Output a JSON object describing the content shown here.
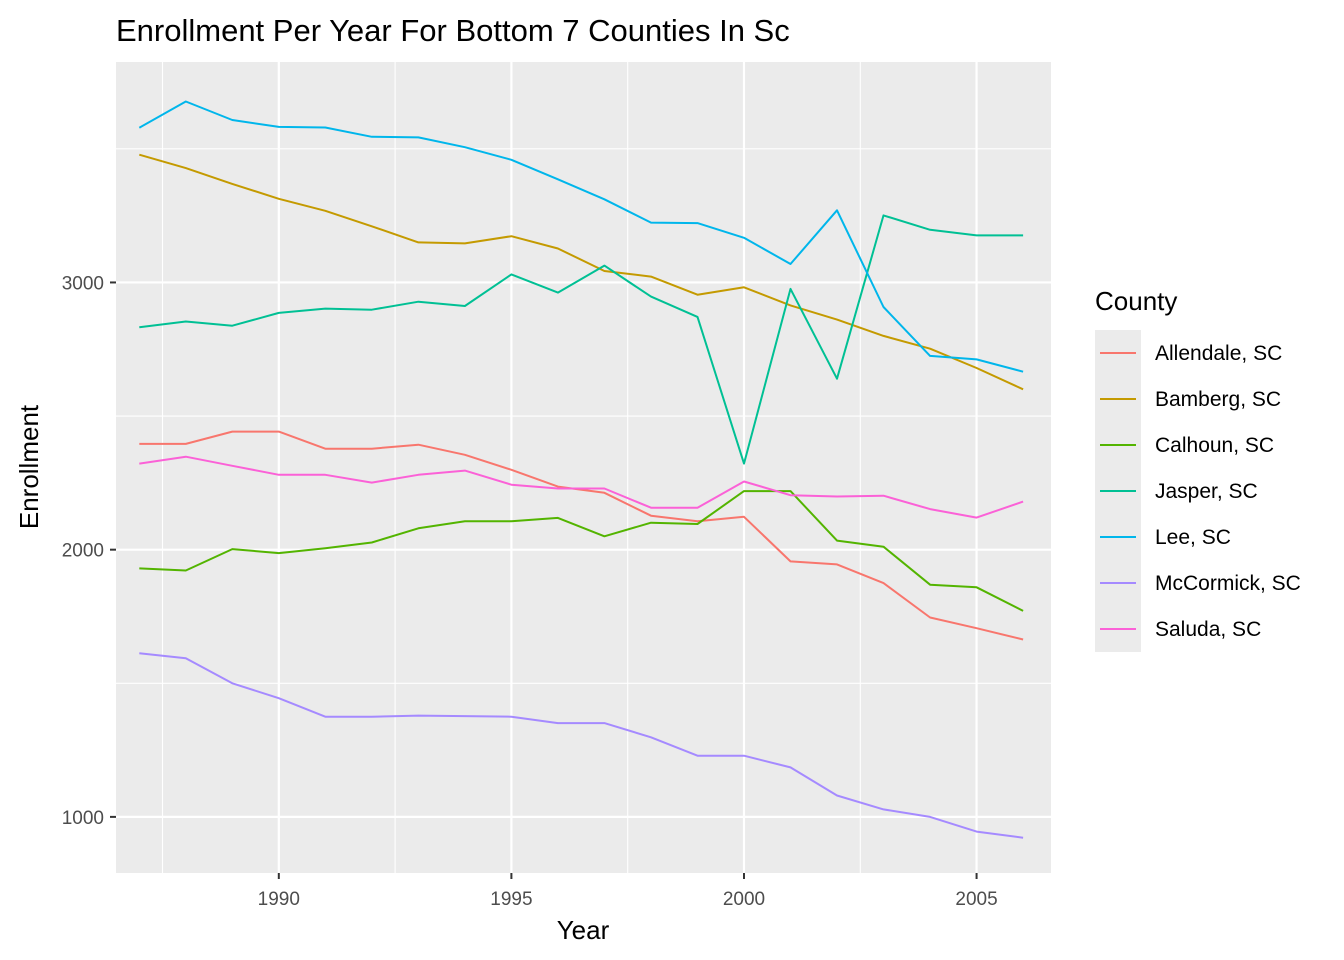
{
  "chart_data": {
    "type": "line",
    "title": "Enrollment Per Year For Bottom 7 Counties In Sc",
    "xlabel": "Year",
    "ylabel": "Enrollment",
    "xlim": [
      1986.5,
      2006.6
    ],
    "ylim": [
      790,
      3825
    ],
    "x_ticks": [
      1990,
      1995,
      2000,
      2005
    ],
    "x_tick_labels": [
      "1990",
      "1995",
      "2000",
      "2005"
    ],
    "y_ticks": [
      1000,
      2000,
      3000
    ],
    "y_tick_labels": [
      "1000",
      "2000",
      "3000"
    ],
    "grid": true,
    "legend": {
      "title": "County",
      "position": "right"
    },
    "x": [
      1987,
      1988,
      1989,
      1990,
      1991,
      1992,
      1993,
      1994,
      1995,
      1996,
      1997,
      1998,
      1999,
      2000,
      2001,
      2002,
      2003,
      2004,
      2005,
      2006
    ],
    "series": [
      {
        "name": "Allendale, SC",
        "color": "#F8766D",
        "values": [
          2396,
          2396,
          2442,
          2442,
          2378,
          2378,
          2393,
          2355,
          2299,
          2236,
          2213,
          2127,
          2106,
          2123,
          1956,
          1945,
          1875,
          1746,
          1706,
          1664
        ]
      },
      {
        "name": "Bamberg, SC",
        "color": "#C49A00",
        "values": [
          3478,
          3428,
          3369,
          3313,
          3268,
          3210,
          3150,
          3146,
          3173,
          3127,
          3043,
          3022,
          2954,
          2982,
          2914,
          2861,
          2800,
          2752,
          2680,
          2600
        ]
      },
      {
        "name": "Calhoun, SC",
        "color": "#53B400",
        "values": [
          1930,
          1922,
          2002,
          1987,
          2005,
          2027,
          2080,
          2106,
          2106,
          2119,
          2050,
          2101,
          2096,
          2219,
          2219,
          2034,
          2011,
          1869,
          1859,
          1771
        ]
      },
      {
        "name": "Jasper, SC",
        "color": "#00C094",
        "values": [
          2832,
          2854,
          2838,
          2886,
          2902,
          2898,
          2928,
          2912,
          3030,
          2962,
          3063,
          2947,
          2871,
          2322,
          2976,
          2640,
          3251,
          3197,
          3176,
          3176
        ]
      },
      {
        "name": "Lee, SC",
        "color": "#00B6EB",
        "values": [
          3579,
          3677,
          3608,
          3582,
          3580,
          3545,
          3543,
          3506,
          3459,
          3386,
          3311,
          3224,
          3222,
          3167,
          3069,
          3270,
          2908,
          2725,
          2712,
          2666
        ]
      },
      {
        "name": "McCormick, SC",
        "color": "#A58AFF",
        "values": [
          1612,
          1594,
          1500,
          1444,
          1375,
          1375,
          1379,
          1377,
          1375,
          1351,
          1351,
          1298,
          1229,
          1229,
          1185,
          1080,
          1028,
          1000,
          945,
          922
        ]
      },
      {
        "name": "Saluda, SC",
        "color": "#FB61D7",
        "values": [
          2322,
          2348,
          2314,
          2280,
          2280,
          2251,
          2280,
          2296,
          2243,
          2229,
          2229,
          2157,
          2157,
          2255,
          2204,
          2199,
          2202,
          2152,
          2120,
          2180
        ]
      }
    ]
  }
}
